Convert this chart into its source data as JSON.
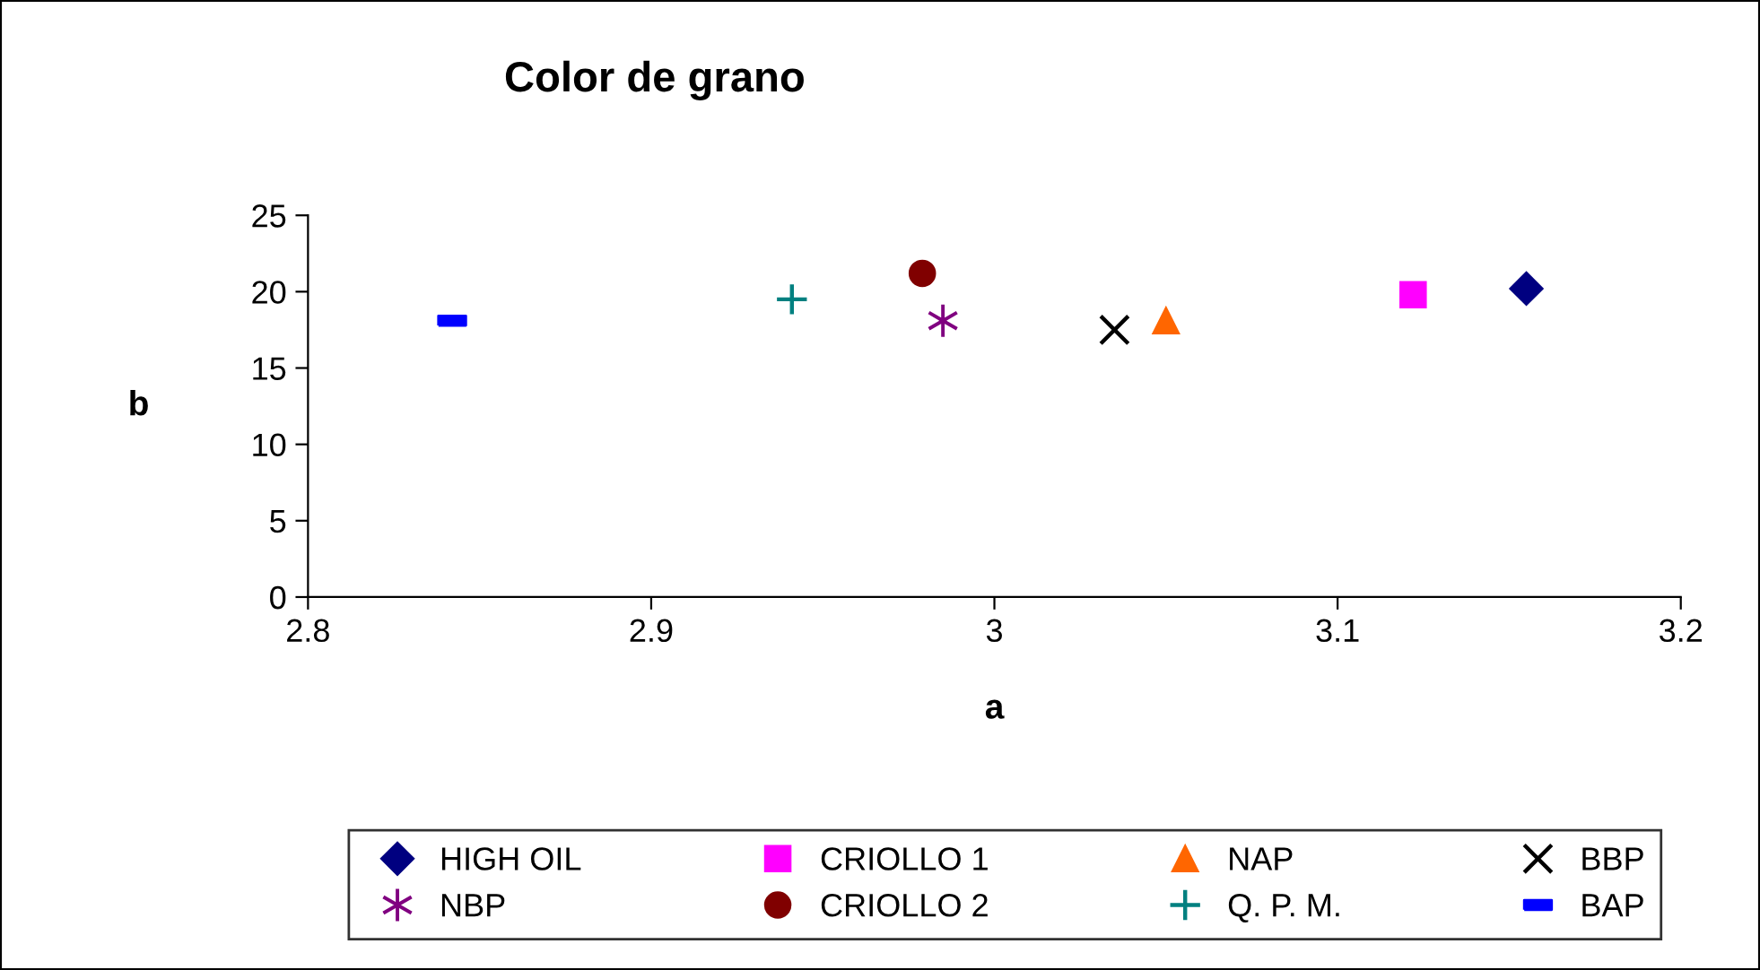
{
  "chart_data": {
    "type": "scatter",
    "title": "Color de grano",
    "xlabel": "a",
    "ylabel": "b",
    "xlim": [
      2.8,
      3.2
    ],
    "xticks": [
      2.8,
      2.9,
      3,
      3.1,
      3.2
    ],
    "ylim": [
      0,
      25
    ],
    "yticks": [
      0,
      5,
      10,
      15,
      20,
      25
    ],
    "grid": false,
    "legend": "bottom",
    "series": [
      {
        "name": "HIGH OIL",
        "color": "#000080",
        "marker": "diamond",
        "x": [
          3.155
        ],
        "values": [
          20.2
        ]
      },
      {
        "name": "CRIOLLO 1",
        "color": "#ff00ff",
        "marker": "square",
        "x": [
          3.122
        ],
        "values": [
          19.8
        ]
      },
      {
        "name": "NAP",
        "color": "#ff6600",
        "marker": "triangle",
        "x": [
          3.05
        ],
        "values": [
          18.1
        ]
      },
      {
        "name": "BBP",
        "color": "#000000",
        "marker": "cross",
        "x": [
          3.035
        ],
        "values": [
          17.5
        ]
      },
      {
        "name": "NBP",
        "color": "#800080",
        "x": [
          2.985
        ],
        "values": [
          18.1
        ]
      },
      {
        "name": "CRIOLLO 2",
        "color": "#800000",
        "marker": "circle",
        "x": [
          2.979
        ],
        "values": [
          21.2
        ]
      },
      {
        "name": "Q. P. M.",
        "color": "#008080",
        "x": [
          2.941
        ],
        "values": [
          19.5
        ]
      },
      {
        "name": "BAP",
        "color": "#0000ff",
        "x": [
          2.842
        ],
        "values": [
          18.1
        ]
      }
    ]
  }
}
